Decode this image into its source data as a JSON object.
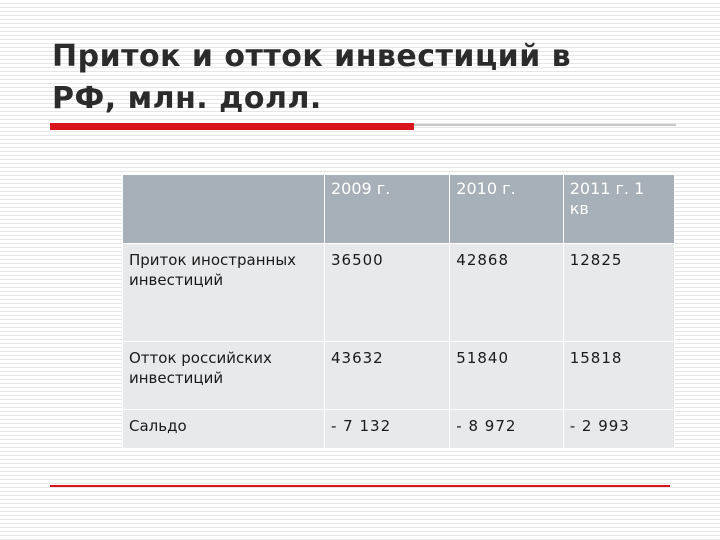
{
  "title": {
    "line1": "Приток и отток инвестиций в",
    "line2": "РФ, млн. долл."
  },
  "table": {
    "headers": [
      "",
      "2009 г.",
      "2010 г.",
      "2011 г. 1 кв"
    ],
    "rows": [
      {
        "label": "Приток иностранных инвестиций",
        "values": [
          "36500",
          "42868",
          "12825"
        ]
      },
      {
        "label": "Отток российских инвестиций",
        "values": [
          "43632",
          "51840",
          "15818"
        ]
      },
      {
        "label": "Сальдо",
        "values": [
          "- 7 132",
          "- 8 972",
          " - 2 993"
        ]
      }
    ]
  },
  "colors": {
    "accent_red": "#d9161c",
    "header_bg": "#a7b0b8",
    "cell_bg": "#e8e9eb"
  }
}
